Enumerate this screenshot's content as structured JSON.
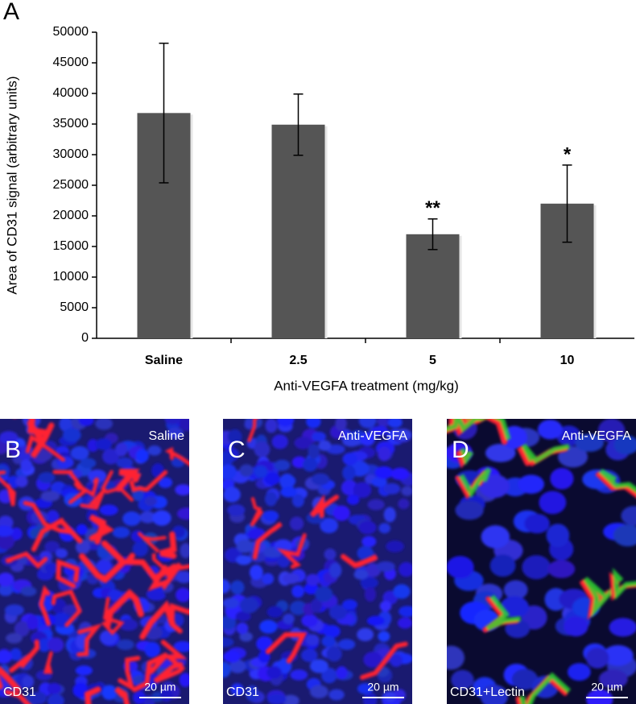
{
  "chart_data": {
    "type": "bar",
    "panel_label": "A",
    "ylabel": "Area of CD31 signal (arbitrary units)",
    "xlabel": "Anti-VEGFA treatment (mg/kg)",
    "categories": [
      "Saline",
      "2.5",
      "5",
      "10"
    ],
    "values": [
      36800,
      34900,
      17000,
      22000
    ],
    "errors": [
      11400,
      5000,
      2500,
      6300
    ],
    "significance": [
      null,
      null,
      "**",
      "*"
    ],
    "color": "#555555",
    "ylim": [
      0,
      50000
    ],
    "yticks": [
      0,
      5000,
      10000,
      15000,
      20000,
      25000,
      30000,
      35000,
      40000,
      45000,
      50000
    ]
  },
  "images": [
    {
      "letter": "B",
      "treatment": "Saline",
      "stain": "CD31",
      "scale_bar": "20 µm"
    },
    {
      "letter": "C",
      "treatment": "Anti-VEGFA",
      "stain": "CD31",
      "scale_bar": "20 µm"
    },
    {
      "letter": "D",
      "treatment": "Anti-VEGFA",
      "stain": "CD31+Lectin",
      "scale_bar": "20 µm"
    }
  ]
}
